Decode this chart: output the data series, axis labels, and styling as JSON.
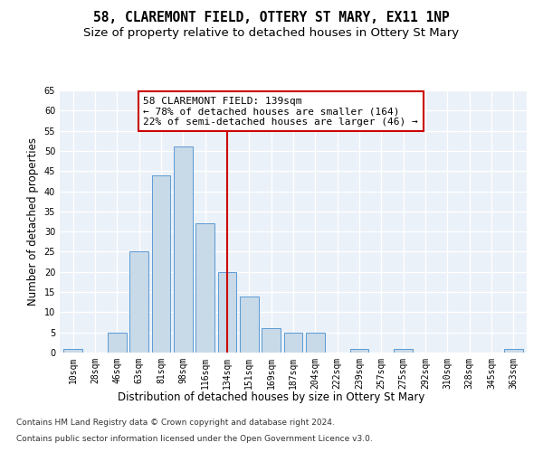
{
  "title": "58, CLAREMONT FIELD, OTTERY ST MARY, EX11 1NP",
  "subtitle": "Size of property relative to detached houses in Ottery St Mary",
  "xlabel": "Distribution of detached houses by size in Ottery St Mary",
  "ylabel": "Number of detached properties",
  "footnote1": "Contains HM Land Registry data © Crown copyright and database right 2024.",
  "footnote2": "Contains public sector information licensed under the Open Government Licence v3.0.",
  "bar_labels": [
    "10sqm",
    "28sqm",
    "46sqm",
    "63sqm",
    "81sqm",
    "98sqm",
    "116sqm",
    "134sqm",
    "151sqm",
    "169sqm",
    "187sqm",
    "204sqm",
    "222sqm",
    "239sqm",
    "257sqm",
    "275sqm",
    "292sqm",
    "310sqm",
    "328sqm",
    "345sqm",
    "363sqm"
  ],
  "bar_values": [
    1,
    0,
    5,
    25,
    44,
    51,
    32,
    20,
    14,
    6,
    5,
    5,
    0,
    1,
    0,
    1,
    0,
    0,
    0,
    0,
    1
  ],
  "bar_color": "#c8d9e8",
  "bar_edge_color": "#5b9bd5",
  "highlight_index": 7,
  "annotation_line1": "58 CLAREMONT FIELD: 139sqm",
  "annotation_line2": "← 78% of detached houses are smaller (164)",
  "annotation_line3": "22% of semi-detached houses are larger (46) →",
  "annotation_box_color": "#ffffff",
  "annotation_box_edge": "#cc0000",
  "vline_color": "#cc0000",
  "ylim": [
    0,
    65
  ],
  "yticks": [
    0,
    5,
    10,
    15,
    20,
    25,
    30,
    35,
    40,
    45,
    50,
    55,
    60,
    65
  ],
  "bg_color": "#eaf1f8",
  "grid_color": "#ffffff",
  "title_fontsize": 10.5,
  "subtitle_fontsize": 9.5,
  "axis_label_fontsize": 8.5,
  "tick_fontsize": 7,
  "annotation_fontsize": 8,
  "footnote_fontsize": 6.5
}
